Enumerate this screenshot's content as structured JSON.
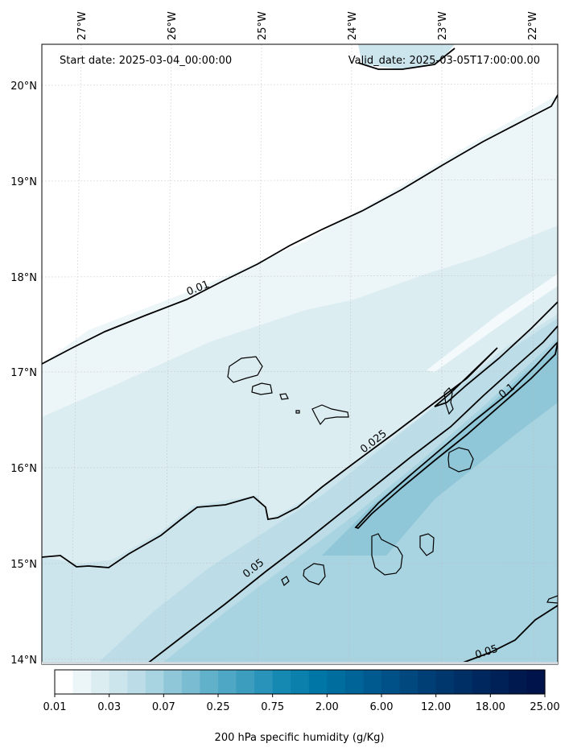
{
  "header": {
    "start_date": "Start date: 2025-03-04_00:00:00",
    "valid_date": "Valid_date: 2025-03-05T17:00:00.00"
  },
  "map": {
    "lon_labels": [
      "27°W",
      "26°W",
      "25°W",
      "24°W",
      "23°W",
      "22°W"
    ],
    "lat_labels": [
      "20°N",
      "19°N",
      "18°N",
      "17°N",
      "16°N",
      "15°N",
      "14°N"
    ],
    "contour_labels": [
      "0.01",
      "0.025",
      "0.1",
      "0.05",
      "0.05"
    ]
  },
  "colorbar": {
    "title": "200 hPa specific humidity (g/Kg)",
    "tick_labels": [
      "0.01",
      "0.03",
      "0.07",
      "0.25",
      "0.75",
      "2.00",
      "6.00",
      "12.00",
      "18.00",
      "25.00"
    ],
    "colors": [
      "#ffffff",
      "#ecf5f8",
      "#dcedf2",
      "#cce5ec",
      "#bcdde7",
      "#a8d3e0",
      "#90c7d8",
      "#7abcd1",
      "#62b1ca",
      "#4ea7c4",
      "#3c9dbf",
      "#2a93b9",
      "#1689b2",
      "#0b80ad",
      "#0076a6",
      "#006d9f",
      "#006498",
      "#005a90",
      "#005187",
      "#00487e",
      "#003f76",
      "#00376d",
      "#002f66",
      "#00285f",
      "#002157",
      "#001a50",
      "#00134a"
    ]
  }
}
